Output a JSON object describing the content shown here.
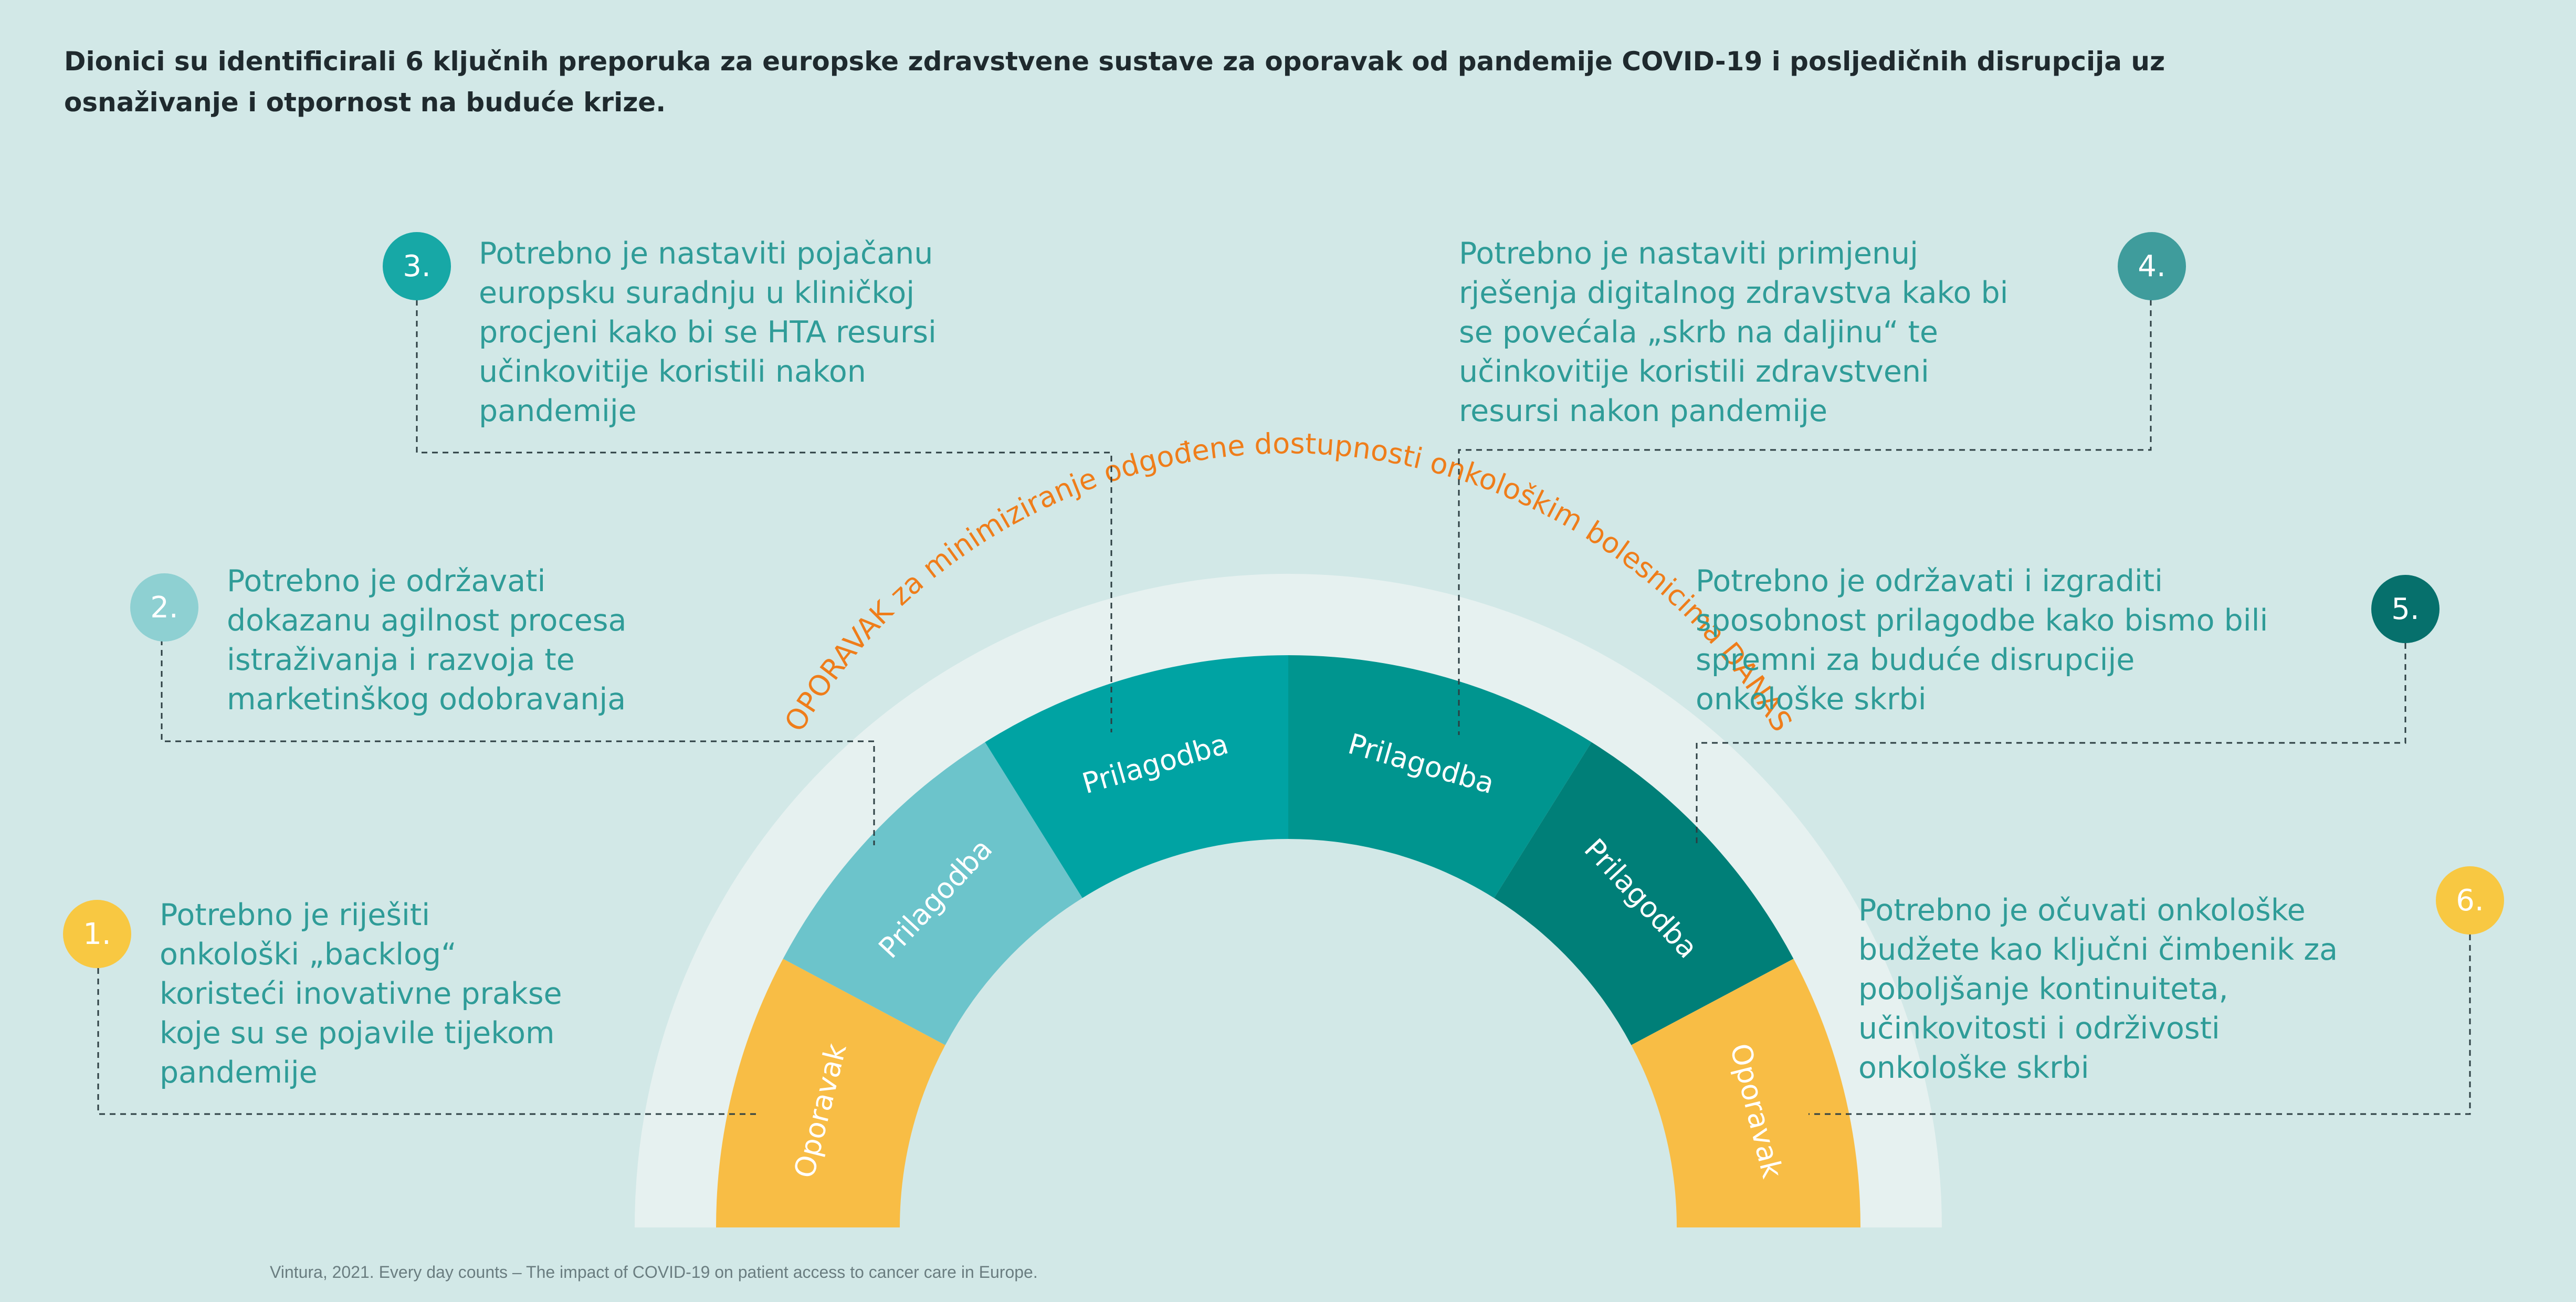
{
  "title": "Dionici su identificirali 6 ključnih preporuka za europske zdravstvene sustave za oporavak od pandemije COVID-19 i posljedičnih disrupcija uz osnaživanje i otpornost na buduće krize.",
  "arc": {
    "outer_label": "OPORAVAK za minimiziranje odgođene dostupnosti onkološkim bolesnicima DANAS",
    "segments": [
      {
        "label": "Oporavak",
        "color": "#f8bd45"
      },
      {
        "label": "Prilagodba",
        "color": "#6cc4cb"
      },
      {
        "label": "Prilagodba",
        "color": "#00a3a3"
      },
      {
        "label": "Prilagodba",
        "color": "#00958f"
      },
      {
        "label": "Prilagodba",
        "color": "#007f78"
      },
      {
        "label": "Oporavak",
        "color": "#f8bd45"
      }
    ],
    "outer_ring_color": "#e6f1f0",
    "label_color": "#ef7d1a"
  },
  "recommendations": [
    {
      "number": "1.",
      "text": "Potrebno je riješiti\nonkološki „backlog“\nkoristeći inovativne prakse\nkoje su se pojavile tijekom\npandemije",
      "badge_color": "#f8c842"
    },
    {
      "number": "2.",
      "text": "Potrebno je održavati\ndokazanu agilnost procesa\nistraživanja i razvoja te\nmarketinškog odobravanja",
      "badge_color": "#8ed0d2"
    },
    {
      "number": "3.",
      "text": "Potrebno je nastaviti pojačanu\neuropsku suradnju u kliničkoj\nprocjeni kako bi se HTA resursi\nučinkovitije koristili nakon\npandemije",
      "badge_color": "#17a8a6"
    },
    {
      "number": "4.",
      "text": "Potrebno je nastaviti primjenuj\nrješenja digitalnog zdravstva kako bi\nse povećala „skrb na daljinu“ te\nučinkovitije koristili zdravstveni\nresursi nakon pandemije",
      "badge_color": "#3f9c9c"
    },
    {
      "number": "5.",
      "text": "Potrebno je održavati i izgraditi\nsposobnost prilagodbe kako bismo bili\nspremni za buduće disrupcije\nonkološke skrbi",
      "badge_color": "#06706c"
    },
    {
      "number": "6.",
      "text": "Potrebno je očuvati onkološke\nbudžete kao ključni čimbenik za\npoboljšanje kontinuiteta,\nučinkovitosti i održivosti\nonkološke skrbi",
      "badge_color": "#f8c842"
    }
  ],
  "source": "Vintura, 2021. Every day counts – The impact of COVID-19 on patient access to cancer care in Europe."
}
